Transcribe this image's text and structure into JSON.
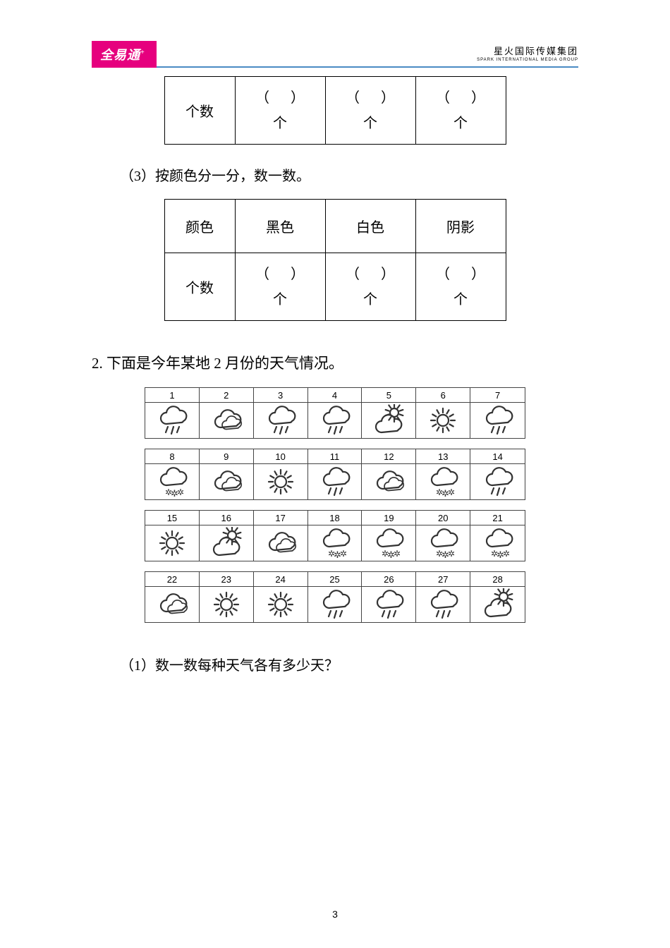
{
  "header": {
    "logo_text": "全易通",
    "logo_sup": "+",
    "right_title": "星火国际传媒集团",
    "right_sub": "SPARK INTERNATIONAL MEDIA GROUP"
  },
  "table1": {
    "row_label": "个数",
    "blank_open": "（",
    "blank_close": "）",
    "unit": "个"
  },
  "part3_label": "（3）按颜色分一分，数一数。",
  "table2": {
    "header_label": "颜色",
    "col1": "黑色",
    "col2": "白色",
    "col3": "阴影",
    "row_label": "个数",
    "blank_open": "（",
    "blank_close": "）",
    "unit": "个"
  },
  "q2_label": "2. 下面是今年某地 2 月份的天气情况。",
  "subq1_label": "（1）数一数每种天气各有多少天？",
  "page_number": "3",
  "calendar": {
    "weeks": [
      {
        "days": [
          {
            "n": "1",
            "w": "rain"
          },
          {
            "n": "2",
            "w": "cloudy"
          },
          {
            "n": "3",
            "w": "rain"
          },
          {
            "n": "4",
            "w": "rain"
          },
          {
            "n": "5",
            "w": "partly"
          },
          {
            "n": "6",
            "w": "sun"
          },
          {
            "n": "7",
            "w": "rain"
          }
        ]
      },
      {
        "days": [
          {
            "n": "8",
            "w": "snow"
          },
          {
            "n": "9",
            "w": "cloudy"
          },
          {
            "n": "10",
            "w": "sun"
          },
          {
            "n": "11",
            "w": "rain"
          },
          {
            "n": "12",
            "w": "cloudy"
          },
          {
            "n": "13",
            "w": "snow"
          },
          {
            "n": "14",
            "w": "rain"
          }
        ]
      },
      {
        "days": [
          {
            "n": "15",
            "w": "sun"
          },
          {
            "n": "16",
            "w": "partly"
          },
          {
            "n": "17",
            "w": "cloudy"
          },
          {
            "n": "18",
            "w": "snow"
          },
          {
            "n": "19",
            "w": "snow"
          },
          {
            "n": "20",
            "w": "snow"
          },
          {
            "n": "21",
            "w": "snow"
          }
        ]
      },
      {
        "days": [
          {
            "n": "22",
            "w": "cloudy"
          },
          {
            "n": "23",
            "w": "sun"
          },
          {
            "n": "24",
            "w": "sun"
          },
          {
            "n": "25",
            "w": "rain"
          },
          {
            "n": "26",
            "w": "rain"
          },
          {
            "n": "27",
            "w": "rain"
          },
          {
            "n": "28",
            "w": "partly"
          }
        ]
      }
    ]
  },
  "icons": {
    "stroke": "#333333",
    "stroke_width": 2.2
  }
}
